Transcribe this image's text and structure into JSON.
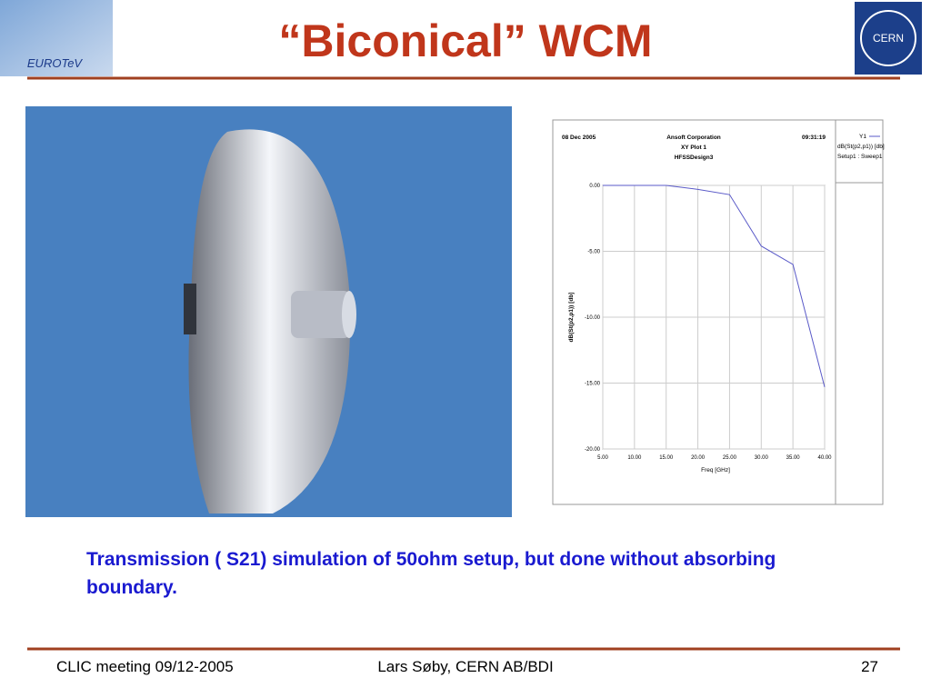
{
  "header": {
    "title": "“Biconical” WCM",
    "logo_left": "EUROTeV",
    "logo_right": "CERN"
  },
  "chart_data": {
    "type": "line",
    "date": "08 Dec 2005",
    "company": "Ansoft Corporation",
    "title": "XY Plot 1",
    "subtitle": "HFSSDesign3",
    "time": "09:31:19",
    "legend_header": "Y1",
    "legend_setup": "Setup1 : Sweep1",
    "x_label": "Freq [GHz]",
    "y_label": "dB(St(p2,p1)) [db]",
    "x": [
      5,
      15,
      20,
      25,
      30,
      35,
      40
    ],
    "series": [
      {
        "name": "dB(St(p2,p1)) [db]",
        "color": "#5a5ac8",
        "values": [
          0,
          0,
          -0.3,
          -0.7,
          -4.6,
          -6.0,
          -15.3
        ]
      }
    ],
    "xlim": [
      5,
      40
    ],
    "ylim": [
      -20,
      0
    ],
    "xticks": [
      {
        "value": 5,
        "label": "5.00"
      },
      {
        "value": 10,
        "label": "10.00"
      },
      {
        "value": 15,
        "label": "15.00"
      },
      {
        "value": 20,
        "label": "20.00"
      },
      {
        "value": 25,
        "label": "25.00"
      },
      {
        "value": 30,
        "label": "30.00"
      },
      {
        "value": 35,
        "label": "35.00"
      },
      {
        "value": 40,
        "label": "40.00"
      }
    ],
    "yticks": [
      {
        "value": 0,
        "label": "0.00"
      },
      {
        "value": -5,
        "label": "-5.00"
      },
      {
        "value": -10,
        "label": "-10.00"
      },
      {
        "value": -15,
        "label": "-15.00"
      },
      {
        "value": -20,
        "label": "-20.00"
      }
    ],
    "grid": true
  },
  "caption": "Transmission ( S21) simulation of 50ohm setup, but done without absorbing boundary.",
  "footer": {
    "left": "CLIC meeting 09/12-2005",
    "center": "Lars Søby, CERN AB/BDI",
    "right": "27"
  }
}
